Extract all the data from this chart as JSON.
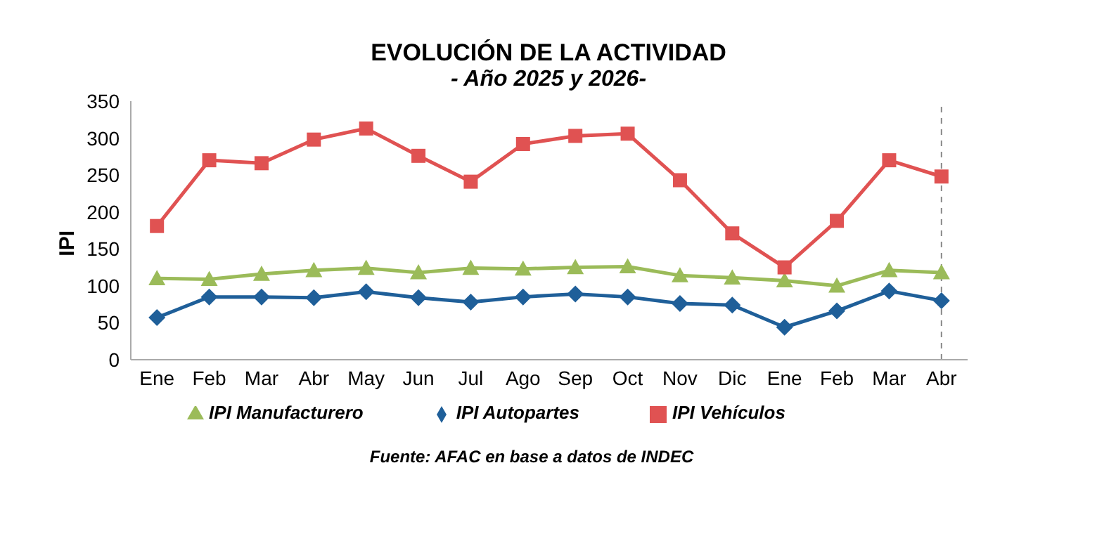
{
  "chart_data": {
    "type": "line",
    "title": "EVOLUCIÓN DE LA ACTIVIDAD",
    "subtitle": "- Año 2025 y 2026-",
    "ylabel": "IPI",
    "x": [
      "2025-01",
      "2025-02",
      "2025-03",
      "2025-04",
      "2025-05",
      "2025-06",
      "2025-07",
      "2025-08",
      "2025-09",
      "2025-10",
      "2025-11",
      "2025-12",
      "2026-01",
      "2026-02",
      "2026-03",
      "2026-04"
    ],
    "xlim": [
      "2024-12-16",
      "2026-04-16"
    ],
    "xticks": [
      {
        "value": "2025-01",
        "label": "Ene"
      },
      {
        "value": "2025-02",
        "label": "Feb"
      },
      {
        "value": "2025-03",
        "label": "Mar"
      },
      {
        "value": "2025-04",
        "label": "Abr"
      },
      {
        "value": "2025-05",
        "label": "May"
      },
      {
        "value": "2025-06",
        "label": "Jun"
      },
      {
        "value": "2025-07",
        "label": "Jul"
      },
      {
        "value": "2025-08",
        "label": "Ago"
      },
      {
        "value": "2025-09",
        "label": "Sep"
      },
      {
        "value": "2025-10",
        "label": "Oct"
      },
      {
        "value": "2025-11",
        "label": "Nov"
      },
      {
        "value": "2025-12",
        "label": "Dic"
      },
      {
        "value": "2026-01",
        "label": "Ene"
      },
      {
        "value": "2026-02",
        "label": "Feb"
      },
      {
        "value": "2026-03",
        "label": "Mar"
      },
      {
        "value": "2026-04",
        "label": "Abr"
      }
    ],
    "series": [
      {
        "name": "IPI Manufacturero",
        "color": "#9bbb59",
        "marker": "triangle",
        "values": [
          110,
          109,
          116,
          121,
          124,
          118,
          124,
          123,
          125,
          126,
          114,
          111,
          107,
          100,
          121,
          118
        ]
      },
      {
        "name": "IPI Autopartes",
        "color": "#1f5f99",
        "marker": "diamond",
        "values": [
          57,
          85,
          85,
          84,
          92,
          84,
          78,
          85,
          89,
          85,
          76,
          74,
          44,
          66,
          93,
          80
        ]
      },
      {
        "name": "IPI Vehículos",
        "color": "#e05252",
        "marker": "square",
        "values": [
          181,
          270,
          266,
          298,
          313,
          276,
          241,
          292,
          303,
          306,
          243,
          171,
          125,
          188,
          270,
          248
        ]
      }
    ],
    "ylim": [
      0,
      350
    ],
    "yticks": [
      0,
      50,
      100,
      150,
      200,
      250,
      300,
      350
    ],
    "grid": false,
    "legend": "bottom",
    "ref_lines": [
      {
        "axis": "x",
        "value": "2026-04",
        "color": "#888888",
        "line_style": "dashed"
      }
    ],
    "annotations": [
      "Fuente: AFAC en base a datos de INDEC"
    ]
  }
}
